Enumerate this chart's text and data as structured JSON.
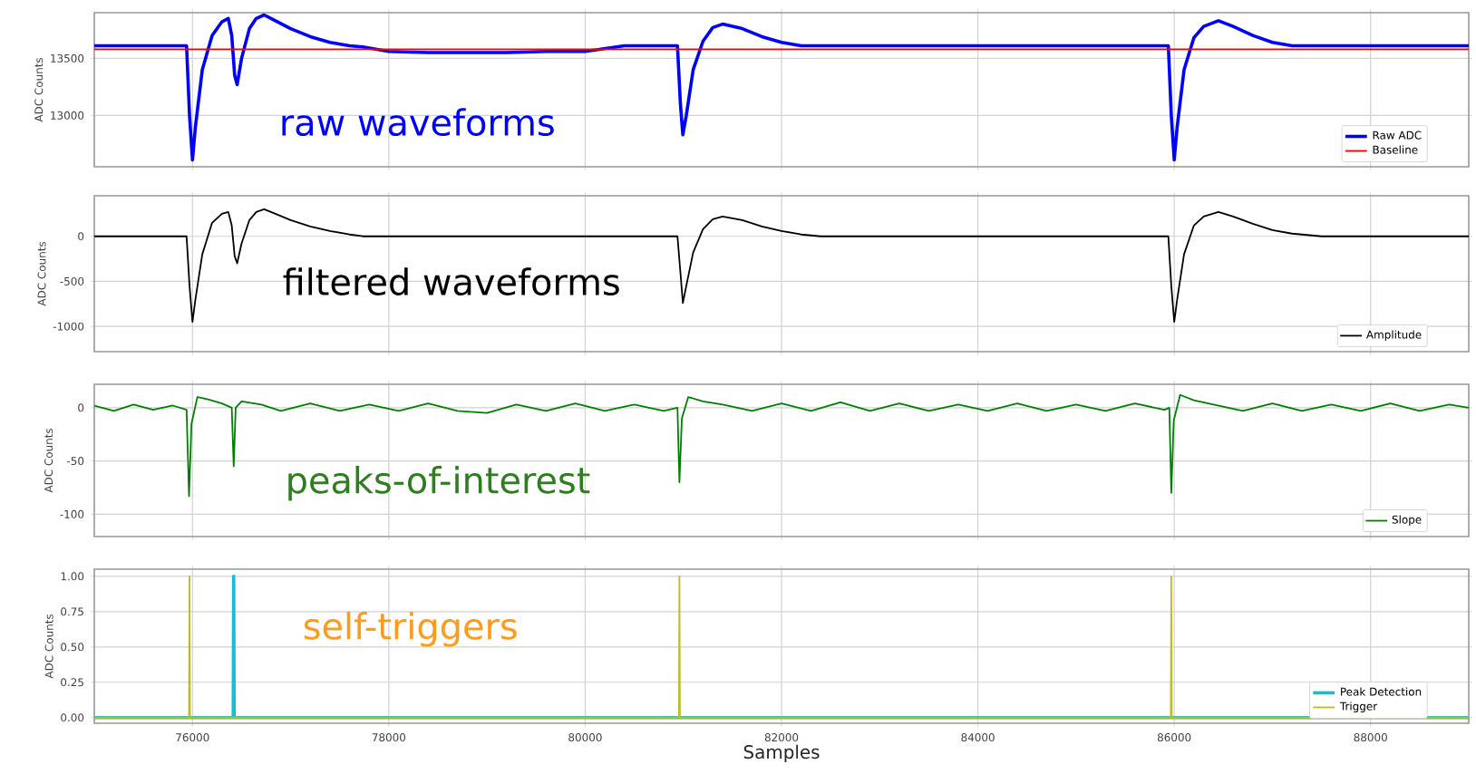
{
  "chart_data": [
    {
      "type": "line",
      "ylabel": "ADC Counts",
      "xlim": [
        75000,
        89000
      ],
      "xticks": [
        76000,
        78000,
        80000,
        82000,
        84000,
        86000,
        88000
      ],
      "ylim": [
        12550,
        13900
      ],
      "yticks": [
        13000,
        13500
      ],
      "grid": true,
      "legend": "bottom right",
      "tick_labels": "y",
      "annotations": [
        "raw waveforms"
      ],
      "series": [
        {
          "name": "Raw ADC",
          "color": "#0000ff",
          "x": [
            75000,
            75400,
            75800,
            75940,
            75970,
            76000,
            76030,
            76100,
            76200,
            76300,
            76365,
            76400,
            76430,
            76455,
            76500,
            76580,
            76650,
            76730,
            76800,
            77000,
            77200,
            77400,
            77600,
            77735,
            78000,
            78400,
            78800,
            79200,
            79600,
            80000,
            80400,
            80800,
            80940,
            80970,
            80995,
            81030,
            81100,
            81200,
            81300,
            81400,
            81600,
            81800,
            82000,
            82200,
            82400,
            82800,
            83200,
            83600,
            84000,
            84400,
            84800,
            85200,
            85600,
            85940,
            85970,
            86000,
            86030,
            86100,
            86200,
            86300,
            86450,
            86600,
            86800,
            87000,
            87200,
            87500,
            87800,
            88200,
            88600,
            89000
          ],
          "values": [
            13610,
            13610,
            13610,
            13610,
            13000,
            12610,
            12900,
            13400,
            13700,
            13820,
            13850,
            13700,
            13350,
            13270,
            13500,
            13760,
            13850,
            13880,
            13850,
            13760,
            13690,
            13640,
            13610,
            13600,
            13560,
            13550,
            13550,
            13550,
            13560,
            13560,
            13610,
            13610,
            13610,
            13100,
            12830,
            13000,
            13400,
            13650,
            13770,
            13800,
            13760,
            13690,
            13640,
            13610,
            13610,
            13610,
            13610,
            13610,
            13610,
            13610,
            13610,
            13610,
            13610,
            13610,
            13000,
            12610,
            12900,
            13400,
            13680,
            13780,
            13830,
            13780,
            13700,
            13640,
            13610,
            13610,
            13610,
            13610,
            13610,
            13610
          ]
        },
        {
          "name": "Baseline",
          "color": "#ff0000",
          "x": [
            75000,
            89000
          ],
          "values": [
            13580,
            13580
          ]
        }
      ]
    },
    {
      "type": "line",
      "ylabel": "ADC Counts",
      "xlim": [
        75000,
        89000
      ],
      "xticks": [
        76000,
        78000,
        80000,
        82000,
        84000,
        86000,
        88000
      ],
      "ylim": [
        -1280,
        450
      ],
      "yticks": [
        -1000,
        -500,
        0
      ],
      "grid": true,
      "legend": "bottom right",
      "tick_labels": "y",
      "annotations": [
        "filtered waveforms"
      ],
      "series": [
        {
          "name": "Amplitude",
          "color": "#000000",
          "x": [
            75000,
            75940,
            75970,
            76000,
            76030,
            76100,
            76200,
            76300,
            76365,
            76400,
            76430,
            76455,
            76500,
            76580,
            76650,
            76730,
            76800,
            77000,
            77200,
            77400,
            77600,
            77735,
            78000,
            80940,
            80970,
            80995,
            81030,
            81100,
            81200,
            81300,
            81400,
            81600,
            81800,
            82000,
            82200,
            82400,
            85940,
            85970,
            86000,
            86030,
            86100,
            86200,
            86300,
            86450,
            86600,
            86800,
            87000,
            87200,
            87500,
            89000
          ],
          "values": [
            0,
            0,
            -550,
            -950,
            -700,
            -200,
            150,
            250,
            270,
            120,
            -220,
            -300,
            -80,
            180,
            270,
            300,
            270,
            180,
            110,
            60,
            20,
            0,
            0,
            0,
            -400,
            -740,
            -550,
            -180,
            80,
            190,
            220,
            180,
            110,
            60,
            20,
            0,
            0,
            -550,
            -950,
            -700,
            -200,
            120,
            220,
            270,
            220,
            140,
            70,
            30,
            0,
            0
          ]
        }
      ]
    },
    {
      "type": "line",
      "ylabel": "ADC Counts",
      "xlim": [
        75000,
        89000
      ],
      "xticks": [
        76000,
        78000,
        80000,
        82000,
        84000,
        86000,
        88000
      ],
      "ylim": [
        -121,
        22
      ],
      "yticks": [
        -100,
        -50,
        0
      ],
      "grid": true,
      "legend": "bottom right",
      "tick_labels": "y",
      "annotations": [
        "peaks-of-interest"
      ],
      "series": [
        {
          "name": "Slope",
          "color": "#008000",
          "x": [
            75000,
            75200,
            75400,
            75600,
            75800,
            75940,
            75965,
            75990,
            76050,
            76150,
            76300,
            76400,
            76420,
            76440,
            76500,
            76700,
            76900,
            77200,
            77500,
            77800,
            78100,
            78400,
            78700,
            79000,
            79300,
            79600,
            79900,
            80200,
            80500,
            80800,
            80940,
            80960,
            80985,
            81050,
            81200,
            81400,
            81700,
            82000,
            82300,
            82600,
            82900,
            83200,
            83500,
            83800,
            84100,
            84400,
            84700,
            85000,
            85300,
            85600,
            85900,
            85950,
            85970,
            85995,
            86060,
            86200,
            86400,
            86700,
            87000,
            87300,
            87600,
            87900,
            88200,
            88500,
            88800,
            89000
          ],
          "values": [
            2,
            -3,
            3,
            -2,
            2,
            -2,
            -83,
            -15,
            10,
            8,
            4,
            0,
            -55,
            0,
            6,
            3,
            -3,
            4,
            -3,
            3,
            -3,
            4,
            -3,
            -5,
            3,
            -3,
            4,
            -3,
            3,
            -3,
            0,
            -70,
            -10,
            10,
            6,
            3,
            -3,
            4,
            -3,
            5,
            -3,
            4,
            -3,
            3,
            -3,
            4,
            -3,
            3,
            -3,
            4,
            -2,
            0,
            -80,
            -12,
            12,
            7,
            3,
            -3,
            4,
            -3,
            3,
            -3,
            4,
            -3,
            3,
            0
          ]
        }
      ]
    },
    {
      "type": "line",
      "ylabel": "ADC Counts",
      "xlabel": "Samples",
      "xlim": [
        75000,
        89000
      ],
      "xticks": [
        76000,
        78000,
        80000,
        82000,
        84000,
        86000,
        88000
      ],
      "ylim": [
        -0.04,
        1.05
      ],
      "yticks": [
        {
          "value": 0,
          "label": "0.00"
        },
        {
          "value": 0.25,
          "label": "0.25"
        },
        {
          "value": 0.5,
          "label": "0.50"
        },
        {
          "value": 0.75,
          "label": "0.75"
        },
        {
          "value": 1,
          "label": "1.00"
        }
      ],
      "grid": true,
      "legend": "bottom right",
      "annotations": [
        "self-triggers"
      ],
      "series": [
        {
          "name": "Peak Detection",
          "color": "#17becf",
          "x": [
            75000,
            76415,
            76420,
            76425,
            89000
          ],
          "values": [
            0,
            0,
            1,
            0,
            0
          ]
        },
        {
          "name": "Trigger",
          "color": "#bcbd22",
          "x": [
            75000,
            75965,
            75970,
            75975,
            80955,
            80960,
            80965,
            85965,
            85970,
            85975,
            89000
          ],
          "values": [
            0,
            0,
            1,
            0,
            0,
            1,
            0,
            0,
            1,
            0,
            0
          ]
        }
      ]
    }
  ]
}
